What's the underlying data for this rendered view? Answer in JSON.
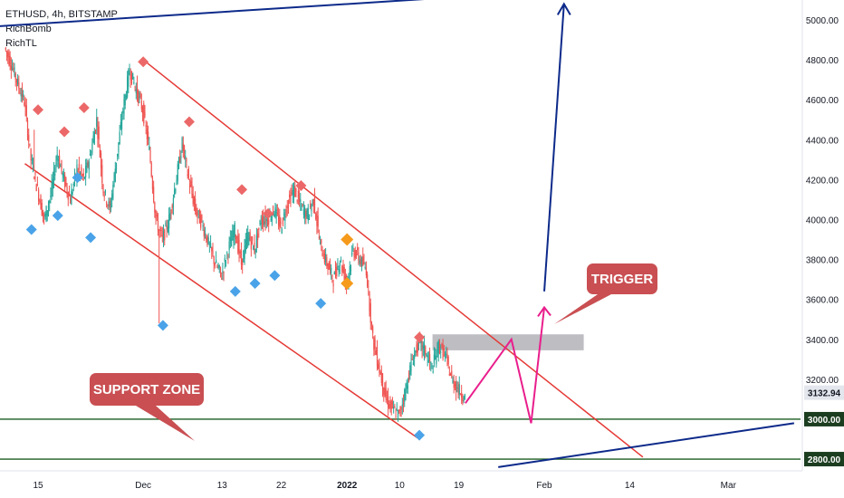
{
  "header": {
    "symbol_line": "ETHUSD, 4h, BITSTAMP",
    "indicator_1": "RichBomb",
    "indicator_2": "RichTL"
  },
  "chart_data": {
    "type": "candlestick",
    "symbol": "ETHUSD",
    "interval": "4h",
    "exchange": "BITSTAMP",
    "y_ticks": [
      5000,
      4800,
      4600,
      4400,
      4200,
      4000,
      3800,
      3600,
      3400,
      3200
    ],
    "y_tick_labels": [
      "5000.00",
      "4800.00",
      "4600.00",
      "4400.00",
      "4200.00",
      "4000.00",
      "3800.00",
      "3600.00",
      "3400.00",
      "3200.00"
    ],
    "ylim": [
      2750,
      5090
    ],
    "x_ticks": [
      {
        "label": "15",
        "day": 15
      },
      {
        "label": "Dec",
        "day": 31
      },
      {
        "label": "13",
        "day": 43
      },
      {
        "label": "22",
        "day": 52
      },
      {
        "label": "2022",
        "day": 62
      },
      {
        "label": "10",
        "day": 70
      },
      {
        "label": "19",
        "day": 79
      },
      {
        "label": "Feb",
        "day": 92
      },
      {
        "label": "14",
        "day": 105
      },
      {
        "label": "Mar",
        "day": 120
      }
    ],
    "price_path": [
      [
        10,
        4860
      ],
      [
        11,
        4780
      ],
      [
        12,
        4680
      ],
      [
        13,
        4590
      ],
      [
        14,
        4300
      ],
      [
        15,
        4150
      ],
      [
        16,
        4000
      ],
      [
        17,
        4120
      ],
      [
        18,
        4330
      ],
      [
        19,
        4200
      ],
      [
        20,
        4100
      ],
      [
        21,
        4260
      ],
      [
        22,
        4200
      ],
      [
        23,
        4320
      ],
      [
        24,
        4500
      ],
      [
        25,
        4150
      ],
      [
        26,
        4050
      ],
      [
        27,
        4300
      ],
      [
        28,
        4550
      ],
      [
        29,
        4750
      ],
      [
        30,
        4650
      ],
      [
        31,
        4550
      ],
      [
        32,
        4350
      ],
      [
        33,
        4000
      ],
      [
        34,
        3900
      ],
      [
        35,
        4000
      ],
      [
        36,
        4180
      ],
      [
        37,
        4380
      ],
      [
        38,
        4200
      ],
      [
        39,
        4050
      ],
      [
        40,
        3980
      ],
      [
        41,
        3880
      ],
      [
        42,
        3780
      ],
      [
        43,
        3720
      ],
      [
        44,
        3850
      ],
      [
        45,
        3950
      ],
      [
        46,
        3780
      ],
      [
        47,
        3920
      ],
      [
        48,
        3850
      ],
      [
        49,
        4000
      ],
      [
        50,
        4000
      ],
      [
        51,
        4050
      ],
      [
        52,
        3960
      ],
      [
        53,
        4080
      ],
      [
        54,
        4150
      ],
      [
        55,
        4070
      ],
      [
        56,
        4020
      ],
      [
        57,
        4100
      ],
      [
        58,
        3870
      ],
      [
        59,
        3780
      ],
      [
        60,
        3700
      ],
      [
        61,
        3800
      ],
      [
        62,
        3680
      ],
      [
        63,
        3850
      ],
      [
        64,
        3800
      ],
      [
        65,
        3750
      ],
      [
        66,
        3400
      ],
      [
        67,
        3250
      ],
      [
        68,
        3100
      ],
      [
        69,
        3050
      ],
      [
        70,
        3020
      ],
      [
        71,
        3150
      ],
      [
        72,
        3300
      ],
      [
        73,
        3380
      ],
      [
        74,
        3340
      ],
      [
        75,
        3250
      ],
      [
        76,
        3370
      ],
      [
        77,
        3320
      ],
      [
        78,
        3200
      ],
      [
        79,
        3150
      ],
      [
        80,
        3110
      ]
    ],
    "wick_extremes": [
      {
        "day": 14,
        "low": 4450
      },
      {
        "day": 33,
        "low": 3480
      }
    ],
    "overlays": {
      "channel_upper": {
        "color": "#e53935",
        "points": [
          [
            31,
            4800
          ],
          [
            107,
            2810
          ]
        ]
      },
      "channel_lower": {
        "color": "#e53935",
        "points": [
          [
            13,
            4280
          ],
          [
            73,
            2900
          ]
        ]
      },
      "trend_top": {
        "color": "#0d2a8a",
        "points": [
          [
            5,
            4960
          ],
          [
            86,
            5130
          ]
        ]
      },
      "trend_bottom": {
        "color": "#0d2a8a",
        "points": [
          [
            85,
            2760
          ],
          [
            130,
            2980
          ]
        ]
      },
      "support_levels": [
        3000,
        2800
      ],
      "support_color": "#1b5e20",
      "resistance_box": {
        "day_start": 75,
        "day_end": 98,
        "top": 3425,
        "bottom": 3345,
        "color": "#b9b9bf"
      },
      "projection": {
        "color": "#e91e8c",
        "points": [
          [
            80,
            3080
          ],
          [
            87,
            3400
          ],
          [
            90,
            2980
          ],
          [
            92,
            3560
          ]
        ]
      },
      "target_arrow": {
        "color": "#0d2a8a",
        "points": [
          [
            92,
            3640
          ],
          [
            95,
            5080
          ]
        ]
      }
    },
    "markers_red": [
      [
        15,
        4550
      ],
      [
        19,
        4440
      ],
      [
        22,
        4560
      ],
      [
        31,
        4790
      ],
      [
        38,
        4490
      ],
      [
        46,
        4150
      ],
      [
        50,
        4030
      ],
      [
        55,
        4170
      ],
      [
        73,
        3410
      ]
    ],
    "markers_blue": [
      [
        14,
        3950
      ],
      [
        18,
        4020
      ],
      [
        21,
        4210
      ],
      [
        23,
        3910
      ],
      [
        34,
        3470
      ],
      [
        45,
        3640
      ],
      [
        48,
        3680
      ],
      [
        51,
        3720
      ],
      [
        58,
        3580
      ],
      [
        73,
        2920
      ]
    ],
    "markers_orange": [
      [
        62,
        3900
      ],
      [
        62,
        3680
      ]
    ],
    "price_tags": [
      {
        "label": "3132.94",
        "value": 3132.94,
        "style": "light"
      },
      {
        "label": "3000.00",
        "value": 3000,
        "style": "dark"
      },
      {
        "label": "2800.00",
        "value": 2800,
        "style": "dark"
      }
    ],
    "annotations": [
      {
        "text": "TRIGGER",
        "color": "#c94f52"
      },
      {
        "text": "SUPPORT ZONE",
        "color": "#c94f52"
      }
    ]
  }
}
